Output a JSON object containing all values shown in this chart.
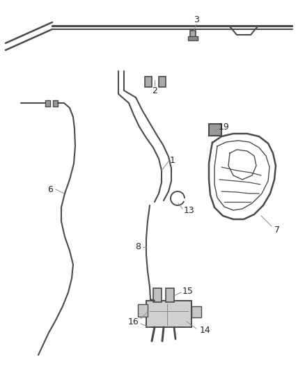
{
  "bg_color": "#ffffff",
  "line_color": "#4a4a4a",
  "label_color": "#222222",
  "figsize": [
    4.38,
    5.33
  ],
  "dpi": 100
}
